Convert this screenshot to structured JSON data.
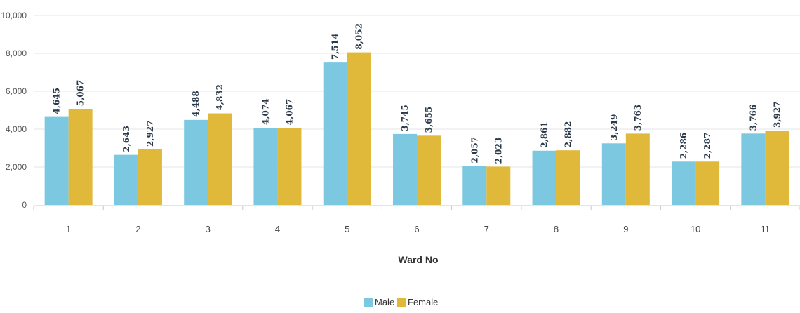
{
  "chart_data": {
    "type": "bar",
    "categories": [
      "1",
      "2",
      "3",
      "4",
      "5",
      "6",
      "7",
      "8",
      "9",
      "10",
      "11"
    ],
    "series": [
      {
        "name": "Male",
        "color": "#7cc8e0",
        "values": [
          4645,
          2643,
          4488,
          4074,
          7514,
          3745,
          2057,
          2861,
          3249,
          2286,
          3766
        ]
      },
      {
        "name": "Female",
        "color": "#e0b83a",
        "values": [
          5067,
          2927,
          4832,
          4067,
          8052,
          3655,
          2023,
          2882,
          3763,
          2287,
          3927
        ]
      }
    ],
    "xlabel": "Ward No",
    "ylabel": "",
    "ylim": [
      0,
      10000
    ],
    "y_ticks": [
      "0",
      "2,000",
      "4,000",
      "6,000",
      "8,000",
      "10,000"
    ],
    "grid": true,
    "legend_position": "bottom-center",
    "data_labels": [
      [
        "4,645",
        "2,643",
        "4,488",
        "4,074",
        "7,514",
        "3,745",
        "2,057",
        "2,861",
        "3,249",
        "2,286",
        "3,766"
      ],
      [
        "5,067",
        "2,927",
        "4,832",
        "4,067",
        "8,052",
        "3,655",
        "2,023",
        "2,882",
        "3,763",
        "2,287",
        "3,927"
      ]
    ]
  }
}
